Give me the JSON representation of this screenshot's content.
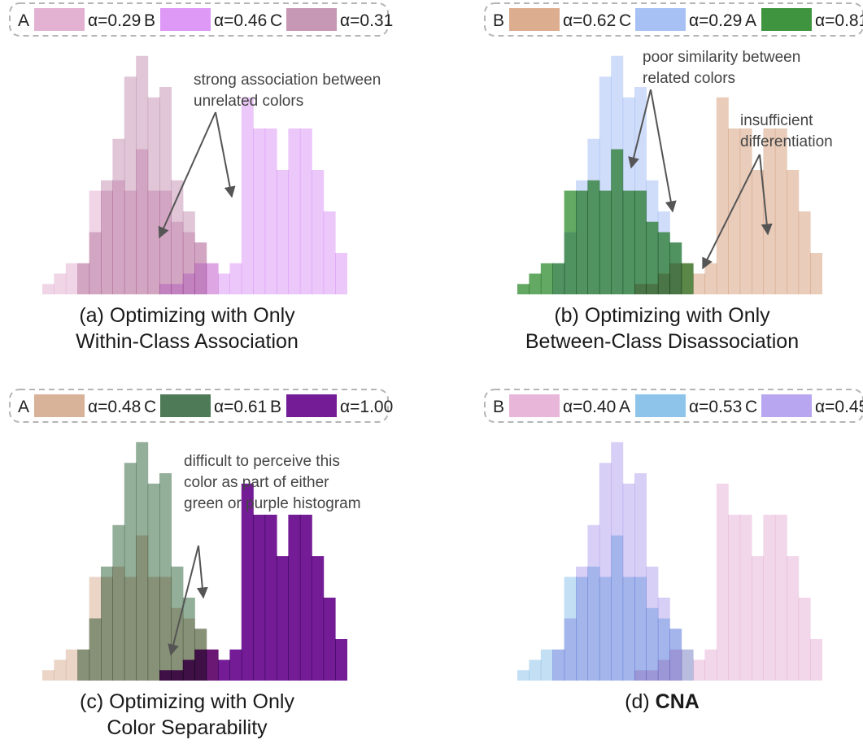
{
  "chart_data": [
    {
      "type": "bar",
      "subtype": "overlapping-histogram",
      "caption": [
        "(a) Optimizing with Only",
        "Within-Class Association"
      ],
      "caption_bold_part": "",
      "legend": [
        {
          "label": "A",
          "color": "#e3b2d3",
          "alpha_text": "α=0.29"
        },
        {
          "label": "B",
          "color": "#dd99f5",
          "alpha_text": "α=0.46"
        },
        {
          "label": "C",
          "color": "#c797b6",
          "alpha_text": "α=0.31"
        }
      ],
      "series": [
        {
          "name": "A",
          "color": "#e3b2d3",
          "alpha": 0.29
        },
        {
          "name": "B",
          "color": "#dd99f5",
          "alpha": 0.46
        },
        {
          "name": "C",
          "color": "#c797b6",
          "alpha": 0.31
        }
      ],
      "annotations": [
        {
          "lines": [
            "strong association between",
            "unrelated colors"
          ]
        }
      ]
    },
    {
      "type": "bar",
      "subtype": "overlapping-histogram",
      "caption": [
        "(b) Optimizing with Only",
        "Between-Class Disassociation"
      ],
      "caption_bold_part": "",
      "legend": [
        {
          "label": "B",
          "color": "#dcae8f",
          "alpha_text": "α=0.62"
        },
        {
          "label": "C",
          "color": "#a7c1f5",
          "alpha_text": "α=0.29"
        },
        {
          "label": "A",
          "color": "#3f953f",
          "alpha_text": "α=0.81"
        }
      ],
      "series": [
        {
          "name": "B",
          "color": "#dcae8f",
          "alpha": 0.62
        },
        {
          "name": "C",
          "color": "#a7c1f5",
          "alpha": 0.29
        },
        {
          "name": "A",
          "color": "#3f953f",
          "alpha": 0.81
        }
      ],
      "annotations": [
        {
          "lines": [
            "poor similarity between",
            "related colors"
          ]
        },
        {
          "lines": [
            "insufficient",
            "differentiation"
          ]
        }
      ]
    },
    {
      "type": "bar",
      "subtype": "overlapping-histogram",
      "caption": [
        "(c) Optimizing with Only",
        "Color Separability"
      ],
      "caption_bold_part": "",
      "legend": [
        {
          "label": "A",
          "color": "#d9b399",
          "alpha_text": "α=0.48"
        },
        {
          "label": "C",
          "color": "#4e7a58",
          "alpha_text": "α=0.61"
        },
        {
          "label": "B",
          "color": "#741c96",
          "alpha_text": "α=1.00"
        }
      ],
      "series": [
        {
          "name": "A",
          "color": "#d9b399",
          "alpha": 0.48
        },
        {
          "name": "C",
          "color": "#4e7a58",
          "alpha": 0.61
        },
        {
          "name": "B",
          "color": "#741c96",
          "alpha": 1.0
        }
      ],
      "annotations": [
        {
          "lines": [
            "difficult to perceive this",
            "color as part of  either",
            "green or purple histogram"
          ]
        }
      ]
    },
    {
      "type": "bar",
      "subtype": "overlapping-histogram",
      "caption": [
        "(d) ",
        ""
      ],
      "caption_bold_part": "CNA",
      "legend": [
        {
          "label": "B",
          "color": "#e8b6d9",
          "alpha_text": "α=0.40"
        },
        {
          "label": "A",
          "color": "#8fc4ea",
          "alpha_text": "α=0.53"
        },
        {
          "label": "C",
          "color": "#b8a7f0",
          "alpha_text": "α=0.45"
        }
      ],
      "series": [
        {
          "name": "B",
          "color": "#e8b6d9",
          "alpha": 0.4
        },
        {
          "name": "A",
          "color": "#8fc4ea",
          "alpha": 0.53
        },
        {
          "name": "C",
          "color": "#b8a7f0",
          "alpha": 0.45
        }
      ],
      "annotations": []
    }
  ],
  "bins": {
    "A": [
      1,
      2,
      3,
      3,
      10,
      10,
      11,
      10,
      14,
      10,
      10,
      7,
      6,
      5,
      3,
      0,
      0,
      0,
      0,
      0,
      0,
      0,
      0,
      0,
      0,
      0
    ],
    "B": [
      0,
      0,
      0,
      0,
      0,
      0,
      0,
      0,
      0,
      0,
      1,
      1,
      2,
      3,
      3,
      2,
      3,
      19,
      16,
      16,
      12,
      16,
      16,
      12,
      8,
      4
    ],
    "C": [
      0,
      0,
      0,
      3,
      6,
      11,
      15,
      21,
      23,
      19,
      20,
      11,
      8,
      5,
      0,
      0,
      0,
      0,
      0,
      0,
      0,
      0,
      0,
      0,
      0,
      0
    ]
  }
}
